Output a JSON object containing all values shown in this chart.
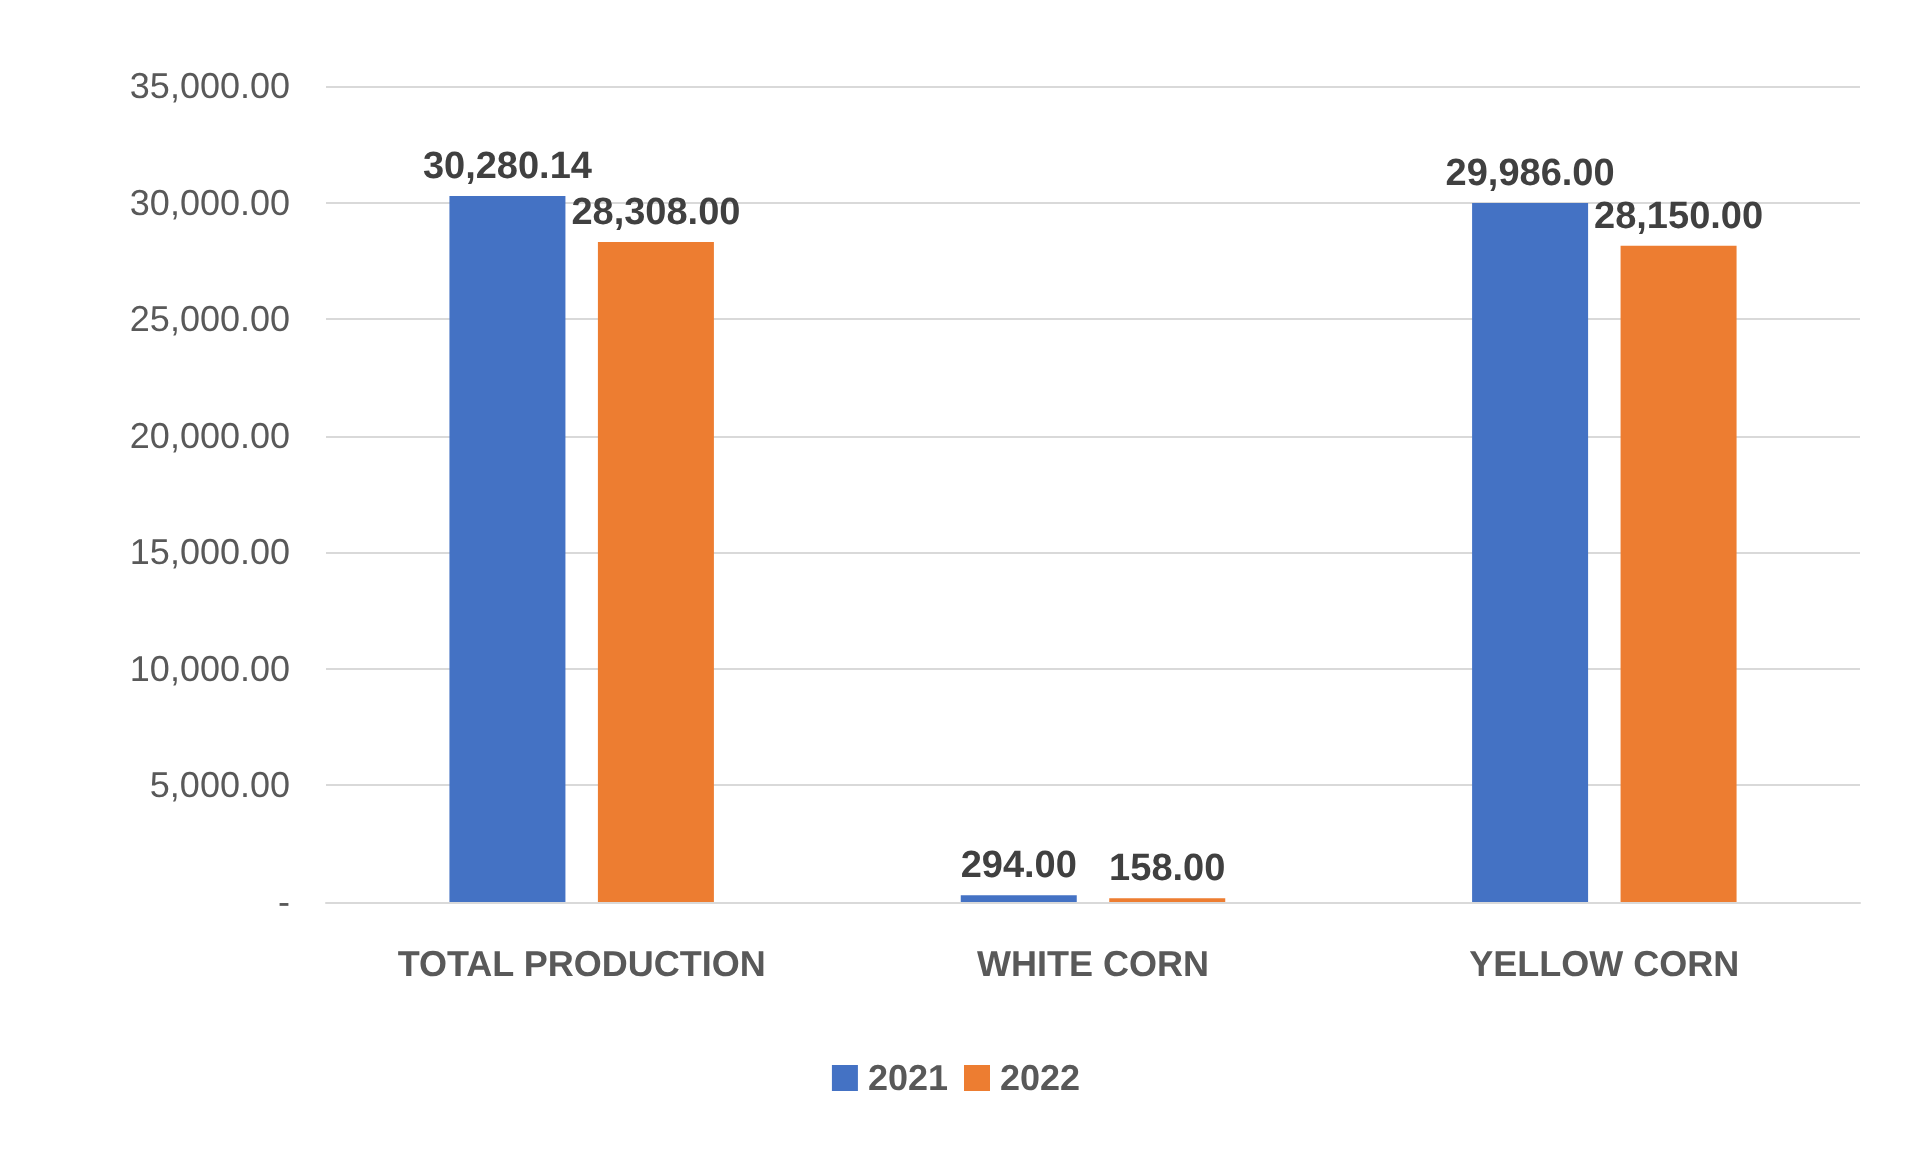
{
  "chart_data": {
    "type": "bar",
    "categories": [
      "TOTAL PRODUCTION",
      "WHITE CORN",
      "YELLOW CORN"
    ],
    "series": [
      {
        "name": "2021",
        "color": "#4472c4",
        "values": [
          30280.14,
          294,
          29986
        ],
        "value_labels": [
          "30,280.14",
          "294.00",
          "29,986.00"
        ]
      },
      {
        "name": "2022",
        "color": "#ed7d31",
        "values": [
          28308,
          158,
          28150
        ],
        "value_labels": [
          "28,308.00",
          "158.00",
          "28,150.00"
        ]
      }
    ],
    "ylim": [
      0,
      35000
    ],
    "yticks": [
      {
        "value": 0,
        "label": "-"
      },
      {
        "value": 5000,
        "label": "5,000.00"
      },
      {
        "value": 10000,
        "label": "10,000.00"
      },
      {
        "value": 15000,
        "label": "15,000.00"
      },
      {
        "value": 20000,
        "label": "20,000.00"
      },
      {
        "value": 25000,
        "label": "25,000.00"
      },
      {
        "value": 30000,
        "label": "30,000.00"
      },
      {
        "value": 35000,
        "label": "35,000.00"
      }
    ],
    "grid": "y",
    "legend": "bottom"
  }
}
